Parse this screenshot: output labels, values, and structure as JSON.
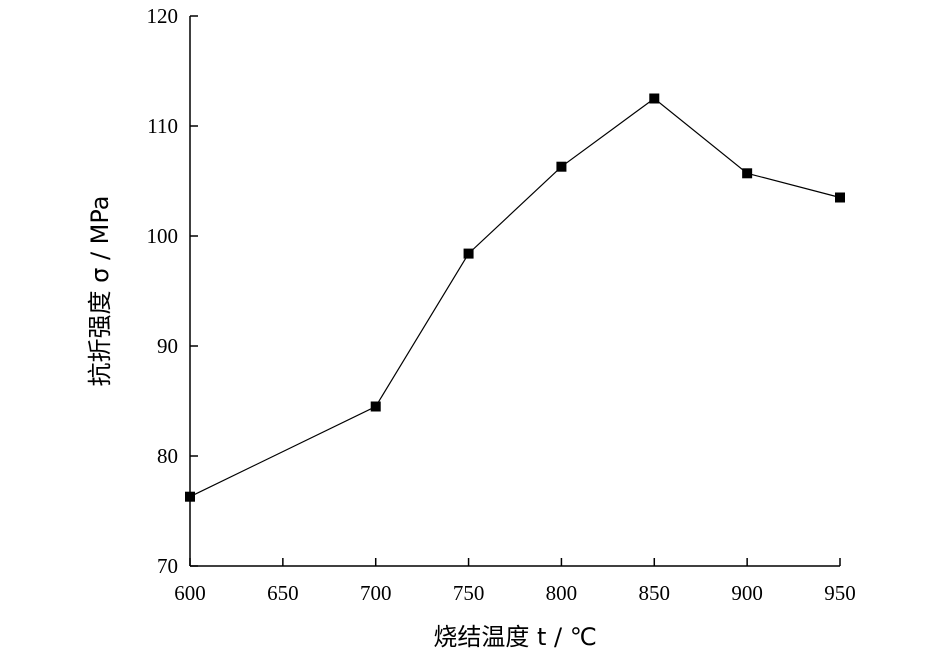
{
  "chart_data": {
    "type": "line",
    "xlabel": "烧结温度 t / ℃",
    "ylabel": "抗折强度 σ / MPa",
    "xlim": [
      600,
      950
    ],
    "ylim": [
      70,
      120
    ],
    "xticks": [
      600,
      650,
      700,
      750,
      800,
      850,
      900,
      950
    ],
    "yticks": [
      70,
      80,
      90,
      100,
      110,
      120
    ],
    "grid": false,
    "series": [
      {
        "x": [
          600,
          700,
          750,
          800,
          850,
          900,
          950
        ],
        "y": [
          76.3,
          84.5,
          98.4,
          106.3,
          112.5,
          105.7,
          103.5
        ],
        "marker": "square",
        "color": "#000000"
      }
    ]
  }
}
